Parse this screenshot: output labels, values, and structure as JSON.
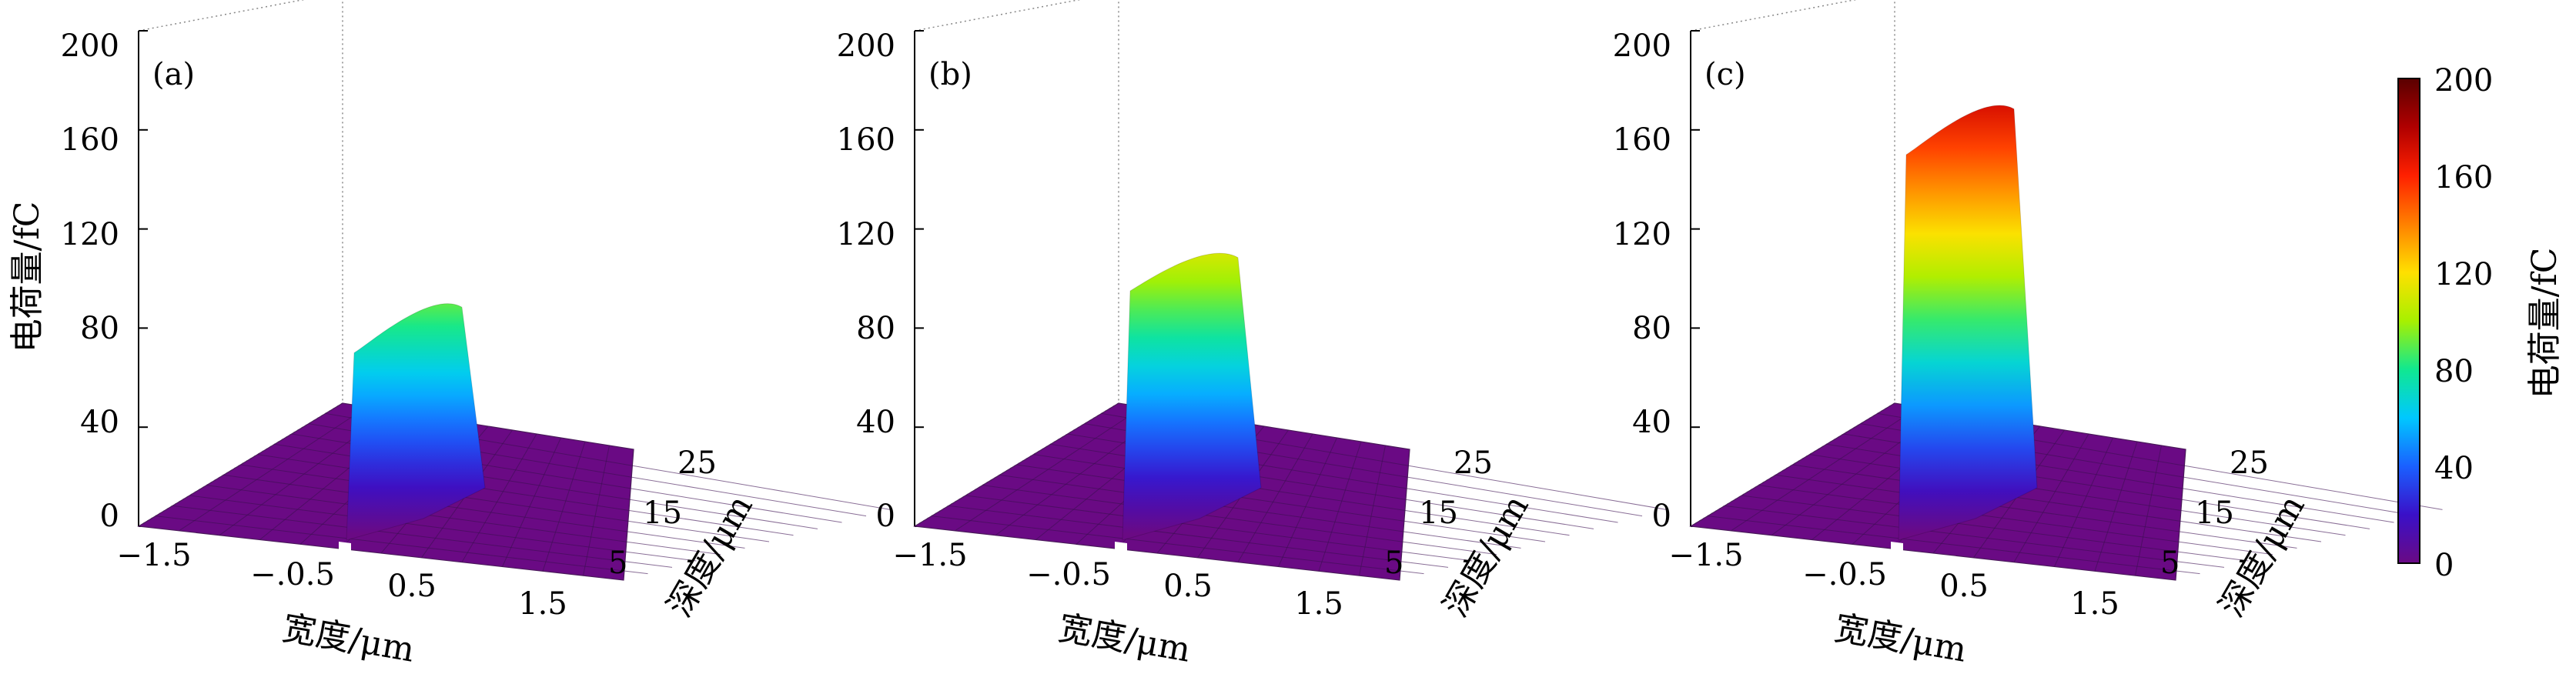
{
  "chart_data": [
    {
      "type": "surface3d",
      "panel": "(a)",
      "zlabel": "电荷量/fC",
      "xlabel": "宽度/μm",
      "ylabel": "深度/μm",
      "zlim": [
        0,
        200
      ],
      "z_ticks": [
        "200",
        "160",
        "120",
        "80",
        "40",
        "0"
      ],
      "x_ticks": [
        "−1.5",
        "−.0.5",
        "0.5",
        "1.5"
      ],
      "y_ticks": [
        "25",
        "15",
        "5"
      ],
      "peak_x_range": [
        -0.3,
        0.3
      ],
      "peak_charge": [
        70,
        90
      ],
      "baseline_charge": 0
    },
    {
      "type": "surface3d",
      "panel": "(b)",
      "zlabel": "",
      "xlabel": "宽度/μm",
      "ylabel": "深度/μm",
      "zlim": [
        0,
        200
      ],
      "z_ticks": [
        "200",
        "160",
        "120",
        "80",
        "40",
        "0"
      ],
      "x_ticks": [
        "−1.5",
        "−.0.5",
        "0.5",
        "1.5"
      ],
      "y_ticks": [
        "25",
        "15",
        "5"
      ],
      "peak_x_range": [
        -0.3,
        0.3
      ],
      "peak_charge": [
        95,
        110
      ],
      "baseline_charge": 0
    },
    {
      "type": "surface3d",
      "panel": "(c)",
      "zlabel": "",
      "xlabel": "宽度/μm",
      "ylabel": "深度/μm",
      "zlim": [
        0,
        200
      ],
      "z_ticks": [
        "200",
        "160",
        "120",
        "80",
        "40",
        "0"
      ],
      "x_ticks": [
        "−1.5",
        "−.0.5",
        "0.5",
        "1.5"
      ],
      "y_ticks": [
        "25",
        "15",
        "5"
      ],
      "peak_x_range": [
        -0.3,
        0.3
      ],
      "peak_charge": [
        150,
        170
      ],
      "baseline_charge": 0
    }
  ],
  "colorbar": {
    "label": "电荷量/fC",
    "ticks": [
      "200",
      "160",
      "120",
      "80",
      "40",
      "0"
    ],
    "range": [
      0,
      200
    ],
    "colors": [
      "#6a0a84",
      "#3a10c8",
      "#1a60ff",
      "#00c8ff",
      "#10e890",
      "#a8f000",
      "#ffe000",
      "#ff8000",
      "#ff2000",
      "#b00000",
      "#5a0000"
    ]
  }
}
